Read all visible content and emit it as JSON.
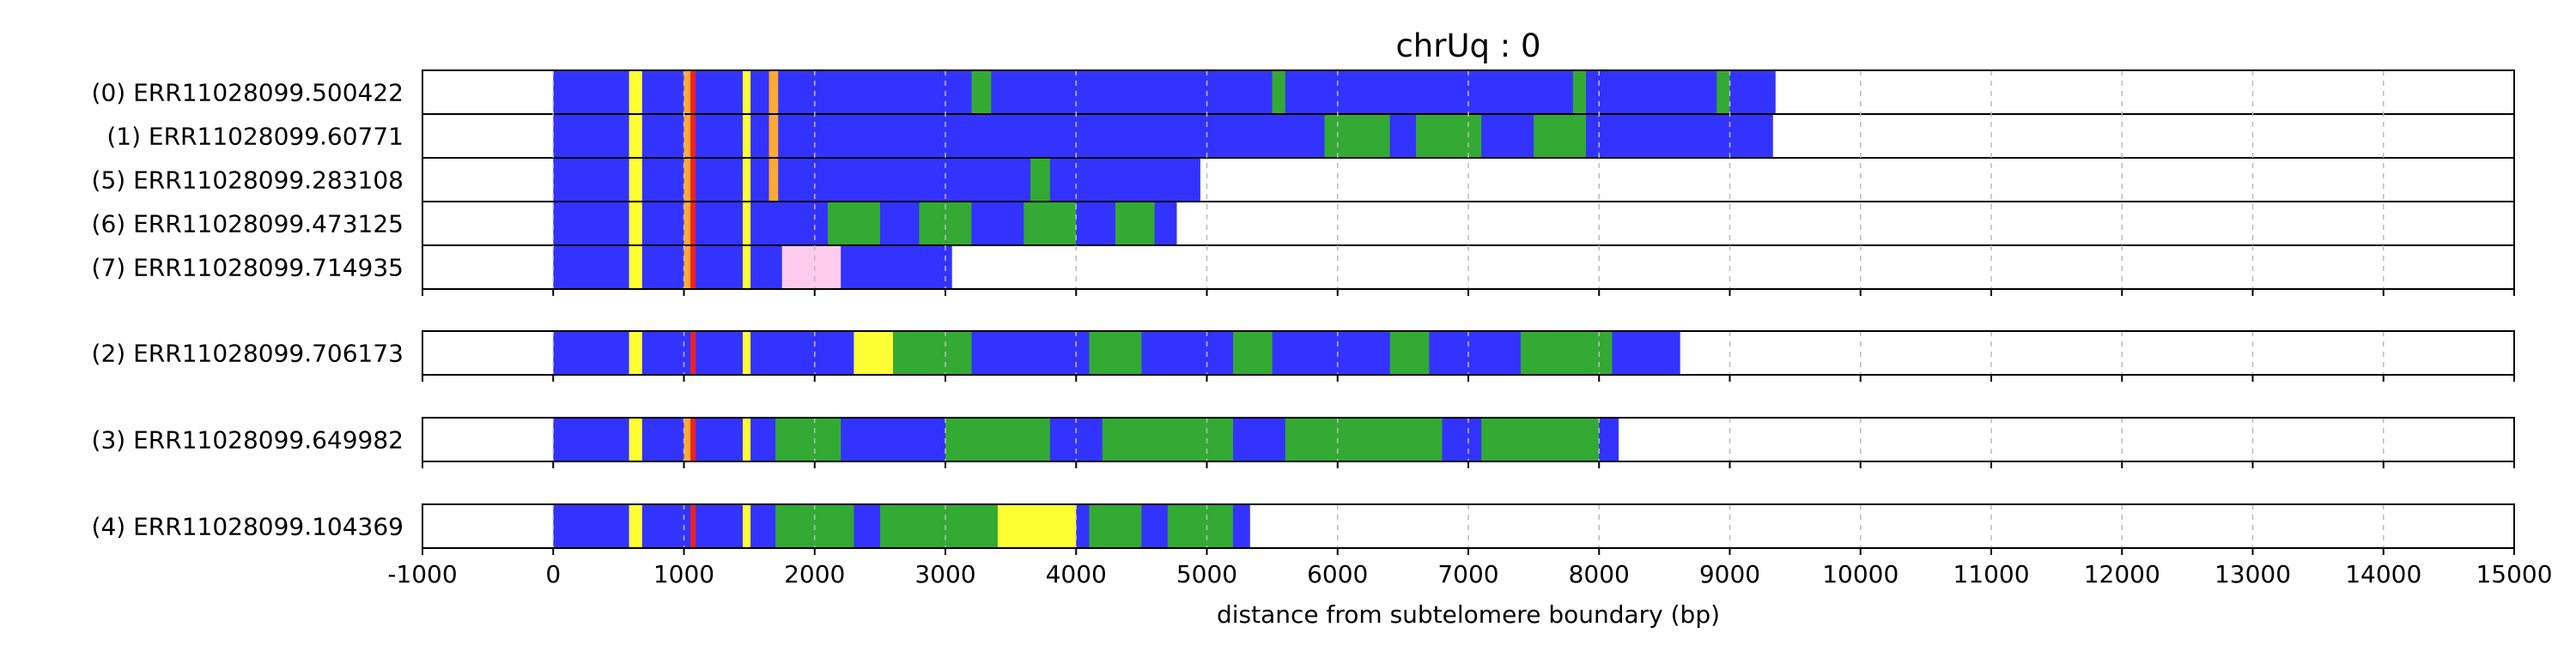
{
  "chart_data": {
    "type": "heatmap",
    "title": "chrUq : 0",
    "xlabel": "distance from subtelomere boundary (bp)",
    "xlim": [
      -1000,
      15000
    ],
    "xticks": [
      "-1000",
      "0",
      "1000",
      "2000",
      "3000",
      "4000",
      "5000",
      "6000",
      "7000",
      "8000",
      "9000",
      "10000",
      "11000",
      "12000",
      "13000",
      "14000",
      "15000"
    ],
    "grid": "vertical dashed at x ticks",
    "colors": {
      "blue": "#3333ff",
      "yellow": "#ffff33",
      "red": "#ee2222",
      "green": "#33aa33",
      "pink": "#ffccee",
      "orange": "#ffaa33",
      "white": "#ffffff"
    },
    "groups": [
      {
        "rows": [
          {
            "label": "(0) ERR11028099.500422",
            "end": 9350,
            "segments": [
              {
                "start": 0,
                "end": 9350,
                "color": "blue"
              },
              {
                "start": 580,
                "end": 680,
                "color": "yellow"
              },
              {
                "start": 1000,
                "end": 1080,
                "color": "orange"
              },
              {
                "start": 1050,
                "end": 1090,
                "color": "red"
              },
              {
                "start": 1450,
                "end": 1510,
                "color": "yellow"
              },
              {
                "start": 1650,
                "end": 1720,
                "color": "orange"
              },
              {
                "start": 3200,
                "end": 3350,
                "color": "green"
              },
              {
                "start": 5500,
                "end": 5600,
                "color": "green"
              },
              {
                "start": 7800,
                "end": 7900,
                "color": "green"
              },
              {
                "start": 8900,
                "end": 9000,
                "color": "green"
              }
            ]
          },
          {
            "label": "(1) ERR11028099.60771",
            "end": 9330,
            "segments": [
              {
                "start": 0,
                "end": 9330,
                "color": "blue"
              },
              {
                "start": 580,
                "end": 680,
                "color": "yellow"
              },
              {
                "start": 1000,
                "end": 1080,
                "color": "orange"
              },
              {
                "start": 1050,
                "end": 1090,
                "color": "red"
              },
              {
                "start": 1450,
                "end": 1510,
                "color": "yellow"
              },
              {
                "start": 1650,
                "end": 1720,
                "color": "orange"
              },
              {
                "start": 5900,
                "end": 6400,
                "color": "green"
              },
              {
                "start": 6600,
                "end": 7100,
                "color": "green"
              },
              {
                "start": 7500,
                "end": 7900,
                "color": "green"
              }
            ]
          },
          {
            "label": "(5) ERR11028099.283108",
            "end": 4950,
            "segments": [
              {
                "start": 0,
                "end": 4950,
                "color": "blue"
              },
              {
                "start": 580,
                "end": 680,
                "color": "yellow"
              },
              {
                "start": 1000,
                "end": 1080,
                "color": "orange"
              },
              {
                "start": 1050,
                "end": 1090,
                "color": "red"
              },
              {
                "start": 1450,
                "end": 1510,
                "color": "yellow"
              },
              {
                "start": 1650,
                "end": 1720,
                "color": "orange"
              },
              {
                "start": 3650,
                "end": 3800,
                "color": "green"
              }
            ]
          },
          {
            "label": "(6) ERR11028099.473125",
            "end": 4770,
            "segments": [
              {
                "start": 0,
                "end": 4770,
                "color": "blue"
              },
              {
                "start": 580,
                "end": 680,
                "color": "yellow"
              },
              {
                "start": 1000,
                "end": 1080,
                "color": "orange"
              },
              {
                "start": 1050,
                "end": 1090,
                "color": "red"
              },
              {
                "start": 1450,
                "end": 1510,
                "color": "yellow"
              },
              {
                "start": 2100,
                "end": 2500,
                "color": "green"
              },
              {
                "start": 2800,
                "end": 3200,
                "color": "green"
              },
              {
                "start": 3600,
                "end": 4000,
                "color": "green"
              },
              {
                "start": 4300,
                "end": 4600,
                "color": "green"
              }
            ]
          },
          {
            "label": "(7) ERR11028099.714935",
            "end": 3050,
            "segments": [
              {
                "start": 0,
                "end": 3050,
                "color": "blue"
              },
              {
                "start": 580,
                "end": 680,
                "color": "yellow"
              },
              {
                "start": 1000,
                "end": 1080,
                "color": "orange"
              },
              {
                "start": 1050,
                "end": 1090,
                "color": "red"
              },
              {
                "start": 1450,
                "end": 1510,
                "color": "yellow"
              },
              {
                "start": 1750,
                "end": 2200,
                "color": "pink"
              }
            ]
          }
        ]
      },
      {
        "rows": [
          {
            "label": "(2) ERR11028099.706173",
            "end": 8620,
            "segments": [
              {
                "start": 0,
                "end": 8620,
                "color": "blue"
              },
              {
                "start": 580,
                "end": 680,
                "color": "yellow"
              },
              {
                "start": 1050,
                "end": 1090,
                "color": "red"
              },
              {
                "start": 1450,
                "end": 1510,
                "color": "yellow"
              },
              {
                "start": 2300,
                "end": 2600,
                "color": "yellow"
              },
              {
                "start": 2600,
                "end": 3200,
                "color": "green"
              },
              {
                "start": 4100,
                "end": 4500,
                "color": "green"
              },
              {
                "start": 5200,
                "end": 5500,
                "color": "green"
              },
              {
                "start": 6400,
                "end": 6700,
                "color": "green"
              },
              {
                "start": 7400,
                "end": 8100,
                "color": "green"
              }
            ]
          }
        ]
      },
      {
        "rows": [
          {
            "label": "(3) ERR11028099.649982",
            "end": 8150,
            "segments": [
              {
                "start": 0,
                "end": 8150,
                "color": "blue"
              },
              {
                "start": 580,
                "end": 680,
                "color": "yellow"
              },
              {
                "start": 1000,
                "end": 1080,
                "color": "orange"
              },
              {
                "start": 1050,
                "end": 1090,
                "color": "red"
              },
              {
                "start": 1450,
                "end": 1510,
                "color": "yellow"
              },
              {
                "start": 1700,
                "end": 2200,
                "color": "green"
              },
              {
                "start": 3000,
                "end": 3800,
                "color": "green"
              },
              {
                "start": 4200,
                "end": 5200,
                "color": "green"
              },
              {
                "start": 5600,
                "end": 6800,
                "color": "green"
              },
              {
                "start": 7100,
                "end": 8000,
                "color": "green"
              }
            ]
          }
        ]
      },
      {
        "rows": [
          {
            "label": "(4) ERR11028099.104369",
            "end": 5330,
            "segments": [
              {
                "start": 0,
                "end": 5330,
                "color": "blue"
              },
              {
                "start": 580,
                "end": 680,
                "color": "yellow"
              },
              {
                "start": 1050,
                "end": 1090,
                "color": "red"
              },
              {
                "start": 1450,
                "end": 1510,
                "color": "yellow"
              },
              {
                "start": 1700,
                "end": 2300,
                "color": "green"
              },
              {
                "start": 2500,
                "end": 3500,
                "color": "green"
              },
              {
                "start": 3400,
                "end": 4000,
                "color": "yellow"
              },
              {
                "start": 4100,
                "end": 4500,
                "color": "green"
              },
              {
                "start": 4700,
                "end": 5200,
                "color": "green"
              }
            ]
          }
        ]
      }
    ]
  }
}
